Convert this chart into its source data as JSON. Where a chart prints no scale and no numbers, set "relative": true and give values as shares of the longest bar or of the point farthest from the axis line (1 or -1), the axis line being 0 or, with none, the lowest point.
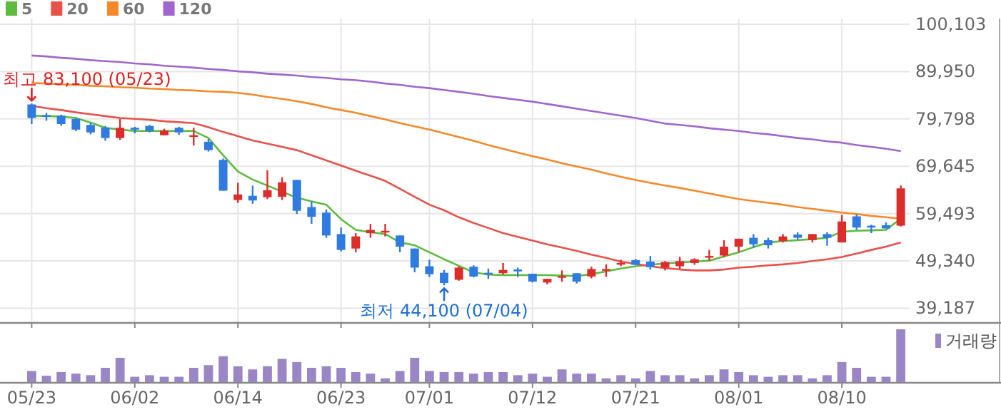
{
  "chart_data": [
    {
      "type": "candlestick",
      "categories": [
        "05/23",
        null,
        null,
        null,
        null,
        null,
        null,
        "06/02",
        null,
        null,
        null,
        null,
        null,
        null,
        "06/14",
        null,
        null,
        null,
        null,
        null,
        null,
        "06/23",
        null,
        null,
        null,
        null,
        null,
        "07/01",
        null,
        null,
        null,
        null,
        null,
        null,
        "07/12",
        null,
        null,
        null,
        null,
        null,
        null,
        "07/21",
        null,
        null,
        null,
        null,
        null,
        null,
        "08/01",
        null,
        null,
        null,
        null,
        null,
        null,
        "08/10",
        null,
        null,
        null,
        null
      ],
      "ohlc": [
        [
          82900,
          83100,
          78700,
          80000
        ],
        [
          80600,
          81100,
          79400,
          80500
        ],
        [
          80500,
          80700,
          78300,
          78700
        ],
        [
          79800,
          80000,
          77200,
          77500
        ],
        [
          78500,
          78900,
          76500,
          76900
        ],
        [
          77900,
          78300,
          75100,
          75700
        ],
        [
          75700,
          79800,
          75300,
          77900
        ],
        [
          77900,
          78100,
          76700,
          77500
        ],
        [
          78300,
          78500,
          76900,
          77200
        ],
        [
          76300,
          77700,
          76300,
          77300
        ],
        [
          77900,
          78100,
          76400,
          76900
        ],
        [
          76200,
          77900,
          74100,
          76300
        ],
        [
          74900,
          75500,
          72800,
          73100
        ],
        [
          71000,
          71300,
          64400,
          64400
        ],
        [
          62400,
          66100,
          61800,
          63600
        ],
        [
          63300,
          65500,
          61600,
          62300
        ],
        [
          63000,
          68800,
          62600,
          64500
        ],
        [
          63100,
          67300,
          62400,
          66200
        ],
        [
          66700,
          66700,
          59400,
          60100
        ],
        [
          60900,
          62100,
          57300,
          58800
        ],
        [
          59700,
          60400,
          54300,
          54800
        ],
        [
          55100,
          56500,
          51400,
          51700
        ],
        [
          52000,
          55300,
          51200,
          54600
        ],
        [
          55300,
          57300,
          54300,
          56000
        ],
        [
          55700,
          57300,
          54600,
          55800
        ],
        [
          54800,
          54800,
          51200,
          52400
        ],
        [
          52000,
          52000,
          46900,
          47900
        ],
        [
          48200,
          49600,
          45900,
          46500
        ],
        [
          46800,
          47400,
          44100,
          44600
        ],
        [
          45300,
          48200,
          45100,
          47900
        ],
        [
          48100,
          48400,
          45800,
          46000
        ],
        [
          46800,
          47700,
          45500,
          46700
        ],
        [
          46700,
          48900,
          46400,
          47400
        ],
        [
          47500,
          47900,
          45900,
          47100
        ],
        [
          46600,
          46600,
          44700,
          44900
        ],
        [
          44700,
          45500,
          44300,
          45500
        ],
        [
          46000,
          47300,
          44900,
          46100
        ],
        [
          46700,
          46700,
          44500,
          44900
        ],
        [
          46000,
          48100,
          45600,
          47600
        ],
        [
          47400,
          48600,
          45900,
          47600
        ],
        [
          48800,
          49600,
          48200,
          48900
        ],
        [
          49500,
          49800,
          48500,
          48500
        ],
        [
          49200,
          50400,
          47500,
          48000
        ],
        [
          47900,
          49300,
          47300,
          49100
        ],
        [
          48200,
          50200,
          47600,
          49300
        ],
        [
          48900,
          49900,
          48500,
          49700
        ],
        [
          50300,
          51700,
          49400,
          50400
        ],
        [
          50500,
          53800,
          50200,
          52400
        ],
        [
          52400,
          54100,
          51200,
          54100
        ],
        [
          54300,
          55100,
          52200,
          52900
        ],
        [
          53800,
          54300,
          52000,
          52700
        ],
        [
          53600,
          55100,
          53300,
          54600
        ],
        [
          55000,
          55500,
          53900,
          54300
        ],
        [
          53800,
          55100,
          53300,
          55100
        ],
        [
          55100,
          55500,
          52600,
          54300
        ],
        [
          53300,
          59200,
          53300,
          57800
        ],
        [
          58900,
          59300,
          56000,
          56500
        ],
        [
          56900,
          57100,
          55300,
          56500
        ],
        [
          57000,
          57600,
          56300,
          56300
        ],
        [
          56900,
          65500,
          56700,
          64900
        ]
      ],
      "colors": [
        "#2f7be0",
        "#2f7be0",
        "#2f7be0",
        "#2f7be0",
        "#2f7be0",
        "#2f7be0",
        "#dd2c2c",
        "#2f7be0",
        "#2f7be0",
        "#dd2c2c",
        "#2f7be0",
        "#dd2c2c",
        "#2f7be0",
        "#2f7be0",
        "#dd2c2c",
        "#2f7be0",
        "#dd2c2c",
        "#dd2c2c",
        "#2f7be0",
        "#2f7be0",
        "#2f7be0",
        "#2f7be0",
        "#dd2c2c",
        "#dd2c2c",
        "#dd2c2c",
        "#2f7be0",
        "#2f7be0",
        "#2f7be0",
        "#2f7be0",
        "#dd2c2c",
        "#2f7be0",
        "#2f7be0",
        "#dd2c2c",
        "#2f7be0",
        "#2f7be0",
        "#dd2c2c",
        "#dd2c2c",
        "#2f7be0",
        "#dd2c2c",
        "#dd2c2c",
        "#dd2c2c",
        "#2f7be0",
        "#2f7be0",
        "#dd2c2c",
        "#dd2c2c",
        "#dd2c2c",
        "#dd2c2c",
        "#dd2c2c",
        "#dd2c2c",
        "#2f7be0",
        "#2f7be0",
        "#dd2c2c",
        "#2f7be0",
        "#dd2c2c",
        "#2f7be0",
        "#dd2c2c",
        "#2f7be0",
        "#2f7be0",
        "#2f7be0",
        "#dd2c2c"
      ],
      "series": [
        {
          "type": "line",
          "name": "5",
          "color": "#5dbb3f",
          "values": [
            80500,
            80400,
            80300,
            80000,
            79000,
            77900,
            77500,
            77200,
            77200,
            77200,
            77200,
            77200,
            75700,
            72000,
            68500,
            66800,
            65500,
            64200,
            62900,
            62100,
            61400,
            58300,
            56000,
            55500,
            55100,
            53300,
            52700,
            51200,
            49700,
            48300,
            46900,
            46400,
            46300,
            46300,
            46300,
            46300,
            46200,
            46100,
            46500,
            47100,
            47700,
            48200,
            48500,
            48800,
            49000,
            49200,
            49400,
            50300,
            51200,
            52300,
            53300,
            53600,
            53800,
            54000,
            54300,
            55600,
            55800,
            55900,
            56000,
            58400
          ]
        },
        {
          "type": "line",
          "name": "20",
          "color": "#e8514a",
          "values": [
            82600,
            82100,
            81700,
            81200,
            80800,
            80400,
            80000,
            79800,
            79600,
            79300,
            79100,
            78900,
            78000,
            77000,
            76100,
            75200,
            74500,
            73800,
            73100,
            72000,
            70900,
            69800,
            68700,
            67600,
            66500,
            64800,
            63100,
            61400,
            60200,
            58700,
            57500,
            56400,
            55300,
            54500,
            53700,
            52900,
            52200,
            51500,
            50700,
            50000,
            49200,
            48700,
            48200,
            47800,
            47500,
            47300,
            47300,
            47500,
            47900,
            48100,
            48400,
            48600,
            48900,
            49300,
            49700,
            50200,
            50900,
            51700,
            52400,
            53300
          ]
        },
        {
          "type": "line",
          "name": "60",
          "color": "#f5892a",
          "values": [
            87500,
            87400,
            87200,
            87100,
            86900,
            86800,
            86600,
            86500,
            86300,
            86200,
            86000,
            85900,
            85700,
            85600,
            85400,
            85000,
            84500,
            84100,
            83600,
            83000,
            82300,
            81700,
            81100,
            80400,
            79700,
            78900,
            78200,
            77500,
            76700,
            75900,
            75100,
            74200,
            73400,
            72600,
            71800,
            71100,
            70300,
            69600,
            68900,
            68100,
            67400,
            66700,
            66100,
            65500,
            65000,
            64400,
            63800,
            63200,
            62600,
            62200,
            61800,
            61400,
            60900,
            60500,
            60100,
            59700,
            59400,
            59000,
            58700,
            58400
          ]
        },
        {
          "type": "line",
          "name": "120",
          "color": "#a066cc",
          "values": [
            93400,
            93200,
            92900,
            92700,
            92400,
            92200,
            92000,
            91700,
            91500,
            91200,
            91000,
            90800,
            90500,
            90300,
            90000,
            89800,
            89500,
            89300,
            89100,
            88800,
            88600,
            88300,
            88100,
            87800,
            87400,
            87100,
            86700,
            86400,
            86000,
            85600,
            85200,
            84700,
            84300,
            83900,
            83500,
            83000,
            82500,
            82000,
            81500,
            81000,
            80500,
            80000,
            79400,
            78800,
            78500,
            78200,
            77800,
            77500,
            77200,
            76800,
            76500,
            76100,
            75700,
            75400,
            75000,
            74700,
            74200,
            73800,
            73400,
            72900
          ]
        }
      ],
      "ylim": [
        36200,
        100103
      ],
      "yticks": [
        {
          "value": 39187,
          "label": "39,187"
        },
        {
          "value": 49340,
          "label": "49,340"
        },
        {
          "value": 59493,
          "label": "59,493"
        },
        {
          "value": 69645,
          "label": "69,645"
        },
        {
          "value": 79798,
          "label": "79,798"
        },
        {
          "value": 89950,
          "label": "89,950"
        },
        {
          "value": 100103,
          "label": "100,103"
        }
      ],
      "grid": true,
      "legend": "top left",
      "tick_labels": "y",
      "annotations": [
        {
          "text": "최고 83,100 (05/23)",
          "x": "05/23",
          "y": 83100
        },
        {
          "text": "최저 44,100 (07/04)",
          "y": 44100
        }
      ]
    },
    {
      "type": "bar",
      "relative": true,
      "legend": "top right",
      "tick_labels": "x",
      "categories": [
        "05/23",
        null,
        null,
        null,
        null,
        null,
        null,
        "06/02",
        null,
        null,
        null,
        null,
        null,
        null,
        "06/14",
        null,
        null,
        null,
        null,
        null,
        null,
        "06/23",
        null,
        null,
        null,
        null,
        null,
        "07/01",
        null,
        null,
        null,
        null,
        null,
        null,
        "07/12",
        null,
        null,
        null,
        null,
        null,
        null,
        "07/21",
        null,
        null,
        null,
        null,
        null,
        null,
        "08/01",
        null,
        null,
        null,
        null,
        null,
        null,
        "08/10",
        null,
        null,
        null,
        null
      ],
      "series": [
        {
          "name": "거래량",
          "color": "#9a86c4",
          "values": [
            0.21,
            0.12,
            0.19,
            0.16,
            0.13,
            0.27,
            0.46,
            0.1,
            0.13,
            0.1,
            0.1,
            0.27,
            0.32,
            0.49,
            0.3,
            0.24,
            0.3,
            0.44,
            0.38,
            0.27,
            0.3,
            0.27,
            0.19,
            0.16,
            0.07,
            0.21,
            0.46,
            0.21,
            0.19,
            0.19,
            0.16,
            0.19,
            0.19,
            0.13,
            0.16,
            0.1,
            0.24,
            0.16,
            0.16,
            0.07,
            0.13,
            0.07,
            0.21,
            0.13,
            0.13,
            0.07,
            0.13,
            0.24,
            0.19,
            0.13,
            0.1,
            0.13,
            0.13,
            0.07,
            0.13,
            0.38,
            0.27,
            0.1,
            0.1,
            1
          ]
        }
      ]
    }
  ]
}
